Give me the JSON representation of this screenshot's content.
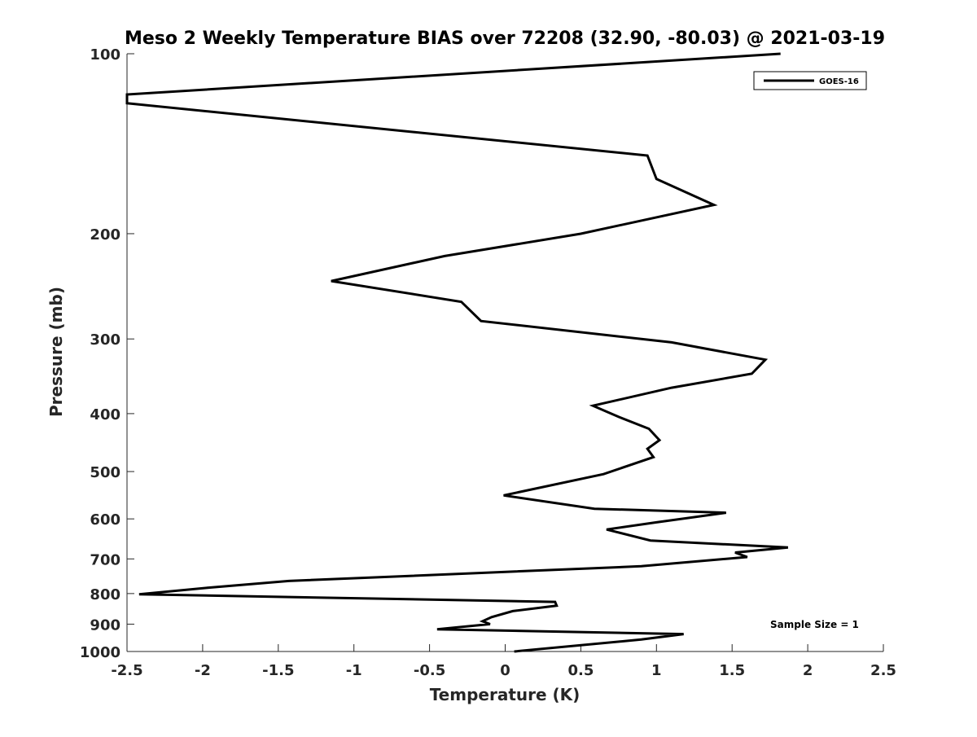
{
  "chart_data": {
    "type": "line",
    "title": "Meso 2 Weekly Temperature BIAS over 72208 (32.90, -80.03) @ 2021-03-19",
    "xlabel": "Temperature (K)",
    "ylabel": "Pressure (mb)",
    "xlim": [
      -2.5,
      2.5
    ],
    "ylim": [
      100,
      1000
    ],
    "y_scale": "log",
    "y_reversed": true,
    "grid": false,
    "xticks": [
      -2.5,
      -2,
      -1.5,
      -1,
      -0.5,
      0,
      0.5,
      1,
      1.5,
      2,
      2.5
    ],
    "xtick_labels": [
      "-2.5",
      "-2",
      "-1.5",
      "-1",
      "-0.5",
      "0",
      "0.5",
      "1",
      "1.5",
      "2",
      "2.5"
    ],
    "yticks": [
      100,
      200,
      300,
      400,
      500,
      600,
      700,
      800,
      900,
      1000
    ],
    "ytick_labels": [
      "100",
      "200",
      "300",
      "400",
      "500",
      "600",
      "700",
      "800",
      "900",
      "1000"
    ],
    "legend_position": "top-right",
    "annotation": "Sample Size = 1",
    "series": [
      {
        "name": "GOES-16",
        "color": "#000000",
        "points": [
          [
            1.82,
            100
          ],
          [
            -2.5,
            117
          ],
          [
            -2.5,
            121
          ],
          [
            0.94,
            148
          ],
          [
            1.0,
            162
          ],
          [
            1.38,
            179
          ],
          [
            0.5,
            200
          ],
          [
            -0.4,
            218
          ],
          [
            -1.15,
            240
          ],
          [
            -0.29,
            260
          ],
          [
            -0.16,
            280
          ],
          [
            1.1,
            304
          ],
          [
            1.72,
            325
          ],
          [
            1.63,
            343
          ],
          [
            1.1,
            362
          ],
          [
            0.58,
            388
          ],
          [
            0.75,
            405
          ],
          [
            0.95,
            424
          ],
          [
            1.02,
            443
          ],
          [
            0.94,
            458
          ],
          [
            0.98,
            473
          ],
          [
            0.65,
            505
          ],
          [
            -0.01,
            548
          ],
          [
            0.59,
            577
          ],
          [
            1.46,
            586
          ],
          [
            1.0,
            608
          ],
          [
            0.67,
            625
          ],
          [
            0.96,
            652
          ],
          [
            1.87,
            670
          ],
          [
            1.52,
            683
          ],
          [
            1.6,
            695
          ],
          [
            0.9,
            720
          ],
          [
            -1.43,
            762
          ],
          [
            -1.96,
            782
          ],
          [
            -2.42,
            802
          ],
          [
            0.33,
            826
          ],
          [
            0.34,
            838
          ],
          [
            0.05,
            856
          ],
          [
            -0.09,
            876
          ],
          [
            -0.15,
            890
          ],
          [
            -0.1,
            900
          ],
          [
            -0.45,
            918
          ],
          [
            1.18,
            935
          ],
          [
            0.9,
            955
          ],
          [
            0.06,
            1000
          ]
        ]
      }
    ]
  }
}
